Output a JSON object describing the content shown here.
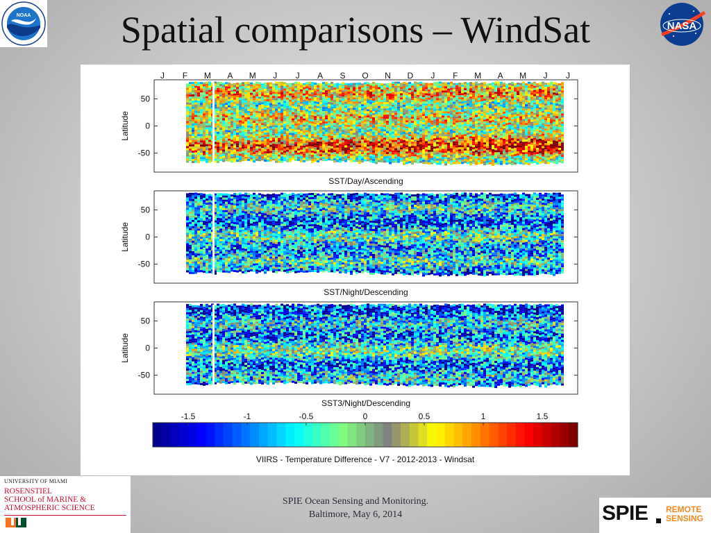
{
  "slide": {
    "title": "Spatial comparisons – WindSat",
    "footer_line1": "SPIE Ocean Sensing and Monitoring.",
    "footer_line2": "Baltimore, May 6, 2014"
  },
  "logos": {
    "noaa": "NOAA",
    "nasa": "NASA",
    "umiami_line1": "UNIVERSITY OF MIAMI",
    "umiami_line2": "ROSENSTIEL",
    "umiami_line3": "SCHOOL of MARINE &",
    "umiami_line4": "ATMOSPHERIC SCIENCE",
    "spie_word": "SPIE",
    "spie_sub1": "REMOTE",
    "spie_sub2": "SENSING"
  },
  "chart_data": {
    "type": "heatmap",
    "months": [
      "J",
      "F",
      "M",
      "A",
      "M",
      "J",
      "J",
      "A",
      "S",
      "O",
      "N",
      "D",
      "J",
      "F",
      "M",
      "A",
      "M",
      "J",
      "J"
    ],
    "y_axis": {
      "label": "Latitude",
      "ticks": [
        50,
        0,
        -50
      ],
      "range": [
        -85,
        85
      ]
    },
    "panels": [
      {
        "title": "SST/Day/Ascending",
        "ylabel": "Latitude"
      },
      {
        "title": "SST/Night/Descending",
        "ylabel": "Latitude"
      },
      {
        "title": "SST3/Night/Descending",
        "ylabel": "Latitude"
      }
    ],
    "data_coverage_lat": [
      -70,
      80
    ],
    "colorbar": {
      "title": "VIIRS - Temperature Difference - V7 - 2012-2013 - Windsat",
      "ticks": [
        "-1.5",
        "-1",
        "-0.5",
        "0",
        "0.5",
        "1",
        "1.5"
      ],
      "tick_values": [
        -1.5,
        -1,
        -0.5,
        0,
        0.5,
        1,
        1.5
      ],
      "range": [
        -1.8,
        1.8
      ],
      "colors": [
        "#00008f",
        "#0000ff",
        "#0080ff",
        "#00ffff",
        "#80ff80",
        "#808080",
        "#ffff00",
        "#ff8000",
        "#ff0000",
        "#800000"
      ]
    }
  }
}
